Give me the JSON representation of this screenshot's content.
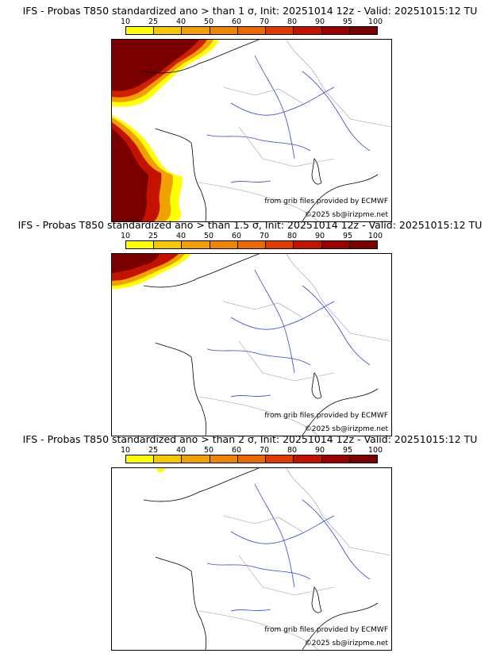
{
  "colorbar": {
    "ticks": [
      "10",
      "25",
      "40",
      "50",
      "60",
      "70",
      "80",
      "90",
      "95",
      "100"
    ],
    "colors": [
      "#ffff00",
      "#f7c800",
      "#f0a000",
      "#ed8500",
      "#ea6a00",
      "#e03a00",
      "#c41200",
      "#9a0000",
      "#7a0000"
    ]
  },
  "panels": [
    {
      "title": "IFS - Probas T850  standardized ano > than 1 σ, Init: 20251014 12z - Valid: 20251015:12 TU",
      "credit_source": "from grib files provided by ECMWF",
      "credit_site": "©2025 sb@irizpme.net"
    },
    {
      "title": "IFS - Probas T850  standardized ano > than 1.5 σ, Init: 20251014 12z - Valid: 20251015:12 TU",
      "credit_source": "from grib files provided by ECMWF",
      "credit_site": "©2025 sb@irizpme.net"
    },
    {
      "title": "IFS - Probas T850  standardized ano > than 2 σ, Init: 20251014 12z - Valid: 20251015:12 TU",
      "credit_source": "from grib files provided by ECMWF",
      "credit_site": "©2025 sb@irizpme.net"
    }
  ]
}
